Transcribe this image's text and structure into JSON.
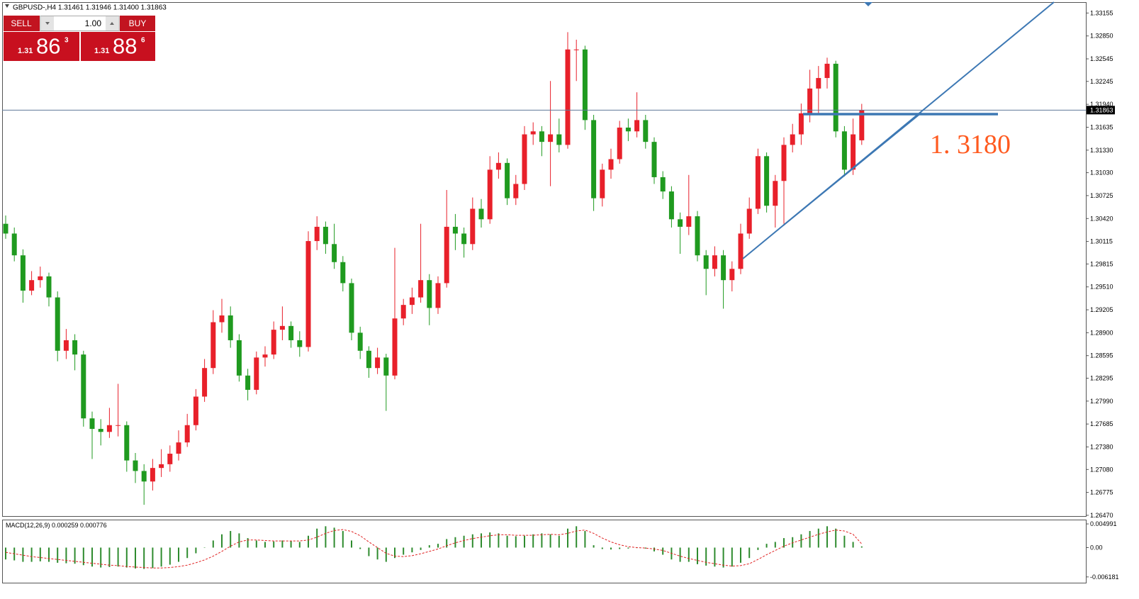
{
  "chart_data": [
    {
      "type": "candlestick",
      "title": "GBPUSD-,H4  1.31461 1.31946 1.31400 1.31863",
      "annotation": "1. 3180",
      "up_color": "#e8202a",
      "down_color": "#1f9a1f",
      "price_line_color": "#5f7a99",
      "trend_color": "#3d78b4",
      "ylim": [
        1.2646,
        1.333
      ],
      "yticks": [
        1.33155,
        {
          "value": 1.3285,
          "label": "1.32850"
        },
        1.32545,
        1.32245,
        {
          "value": 1.3194,
          "label": "1.31940"
        },
        1.31635,
        {
          "value": 1.3133,
          "label": "1.31330"
        },
        {
          "value": 1.3103,
          "label": "1.31030"
        },
        1.30725,
        {
          "value": 1.3042,
          "label": "1.30420"
        },
        1.30115,
        1.29815,
        {
          "value": 1.2951,
          "label": "1.29510"
        },
        1.29205,
        {
          "value": 1.289,
          "label": "1.28900"
        },
        1.28595,
        1.28295,
        {
          "value": 1.2799,
          "label": "1.27990"
        },
        1.27685,
        {
          "value": 1.2738,
          "label": "1.27380"
        },
        {
          "value": 1.2708,
          "label": "1.27080"
        },
        1.26775,
        {
          "value": 1.2647,
          "label": "1.26470"
        }
      ],
      "candles": [
        [
          1.3035,
          1.3046,
          1.3015,
          1.3022
        ],
        [
          1.3022,
          1.303,
          1.2985,
          1.2993
        ],
        [
          1.2993,
          1.3001,
          1.293,
          1.2946
        ],
        [
          1.2946,
          1.2972,
          1.294,
          1.296
        ],
        [
          1.296,
          1.2978,
          1.295,
          1.2965
        ],
        [
          1.2965,
          1.297,
          1.2925,
          1.2937
        ],
        [
          1.2937,
          1.2945,
          1.2852,
          1.2866
        ],
        [
          1.2866,
          1.2895,
          1.2855,
          1.288
        ],
        [
          1.288,
          1.2888,
          1.284,
          1.2861
        ],
        [
          1.2861,
          1.2866,
          1.2765,
          1.2776
        ],
        [
          1.2776,
          1.2785,
          1.2722,
          1.2762
        ],
        [
          1.2762,
          1.2775,
          1.274,
          1.2758
        ],
        [
          1.2758,
          1.279,
          1.275,
          1.2767
        ],
        [
          1.2767,
          1.2822,
          1.2752,
          1.2767
        ],
        [
          1.2767,
          1.2772,
          1.2705,
          1.272
        ],
        [
          1.272,
          1.273,
          1.269,
          1.2706
        ],
        [
          1.2706,
          1.2715,
          1.2661,
          1.2692
        ],
        [
          1.2692,
          1.2722,
          1.268,
          1.271
        ],
        [
          1.271,
          1.2735,
          1.2698,
          1.2715
        ],
        [
          1.2715,
          1.274,
          1.2705,
          1.2729
        ],
        [
          1.2729,
          1.276,
          1.272,
          1.2744
        ],
        [
          1.2744,
          1.2782,
          1.2738,
          1.2767
        ],
        [
          1.2767,
          1.2815,
          1.276,
          1.2805
        ],
        [
          1.2805,
          1.2855,
          1.2798,
          1.2843
        ],
        [
          1.2843,
          1.292,
          1.2835,
          1.2904
        ],
        [
          1.2904,
          1.2935,
          1.289,
          1.2913
        ],
        [
          1.2913,
          1.2925,
          1.287,
          1.288
        ],
        [
          1.288,
          1.2888,
          1.2825,
          1.2833
        ],
        [
          1.2833,
          1.2842,
          1.28,
          1.2814
        ],
        [
          1.2814,
          1.2865,
          1.2808,
          1.2857
        ],
        [
          1.2857,
          1.2872,
          1.2845,
          1.2861
        ],
        [
          1.2861,
          1.2905,
          1.2855,
          1.2894
        ],
        [
          1.2894,
          1.2925,
          1.288,
          1.2899
        ],
        [
          1.2899,
          1.2905,
          1.287,
          1.288
        ],
        [
          1.288,
          1.2892,
          1.2858,
          1.2871
        ],
        [
          1.2871,
          1.3025,
          1.2865,
          1.3012
        ],
        [
          1.3012,
          1.3045,
          1.3,
          1.3031
        ],
        [
          1.3031,
          1.3038,
          1.2995,
          1.3008
        ],
        [
          1.3008,
          1.3035,
          1.2975,
          1.2984
        ],
        [
          1.2984,
          1.2992,
          1.2945,
          1.2956
        ],
        [
          1.2956,
          1.2962,
          1.288,
          1.289
        ],
        [
          1.289,
          1.2898,
          1.2855,
          1.2866
        ],
        [
          1.2866,
          1.2872,
          1.283,
          1.2843
        ],
        [
          1.2843,
          1.287,
          1.2835,
          1.2857
        ],
        [
          1.2857,
          1.2862,
          1.2786,
          1.2833
        ],
        [
          1.2833,
          1.3003,
          1.2828,
          1.2909
        ],
        [
          1.2909,
          1.2935,
          1.29,
          1.2927
        ],
        [
          1.2927,
          1.295,
          1.2915,
          1.2937
        ],
        [
          1.2937,
          1.3035,
          1.293,
          1.296
        ],
        [
          1.296,
          1.2968,
          1.29,
          1.2923
        ],
        [
          1.2923,
          1.2965,
          1.2915,
          1.2956
        ],
        [
          1.2956,
          1.308,
          1.295,
          1.3031
        ],
        [
          1.3031,
          1.3048,
          1.3,
          1.3022
        ],
        [
          1.3022,
          1.303,
          1.299,
          1.3008
        ],
        [
          1.3008,
          1.307,
          1.3,
          1.3055
        ],
        [
          1.3055,
          1.3068,
          1.303,
          1.3041
        ],
        [
          1.3041,
          1.3125,
          1.3035,
          1.3107
        ],
        [
          1.3107,
          1.313,
          1.3095,
          1.3116
        ],
        [
          1.3116,
          1.3122,
          1.306,
          1.3069
        ],
        [
          1.3069,
          1.31,
          1.306,
          1.3088
        ],
        [
          1.3088,
          1.3165,
          1.308,
          1.3154
        ],
        [
          1.3154,
          1.317,
          1.314,
          1.3158
        ],
        [
          1.3158,
          1.3165,
          1.3125,
          1.3144
        ],
        [
          1.3144,
          1.3225,
          1.3085,
          1.3154
        ],
        [
          1.3154,
          1.3175,
          1.313,
          1.314
        ],
        [
          1.314,
          1.329,
          1.3135,
          1.3267
        ],
        [
          1.3267,
          1.328,
          1.3225,
          1.3267
        ],
        [
          1.3267,
          1.3272,
          1.316,
          1.3173
        ],
        [
          1.3173,
          1.318,
          1.3052,
          1.3069
        ],
        [
          1.3069,
          1.3115,
          1.3058,
          1.3107
        ],
        [
          1.3107,
          1.3135,
          1.3095,
          1.3121
        ],
        [
          1.3121,
          1.3172,
          1.3115,
          1.3163
        ],
        [
          1.3163,
          1.3175,
          1.3145,
          1.3158
        ],
        [
          1.3158,
          1.321,
          1.315,
          1.3173
        ],
        [
          1.3173,
          1.318,
          1.3135,
          1.3144
        ],
        [
          1.3144,
          1.315,
          1.3088,
          1.3097
        ],
        [
          1.3097,
          1.3105,
          1.3068,
          1.3078
        ],
        [
          1.3078,
          1.3085,
          1.303,
          1.3041
        ],
        [
          1.3041,
          1.305,
          1.2995,
          1.3031
        ],
        [
          1.3031,
          1.31,
          1.302,
          1.3045
        ],
        [
          1.3045,
          1.3052,
          1.2985,
          1.2993
        ],
        [
          1.2993,
          1.3,
          1.294,
          1.2975
        ],
        [
          1.2975,
          1.3005,
          1.2965,
          1.2993
        ],
        [
          1.2993,
          1.3,
          1.2922,
          1.296
        ],
        [
          1.296,
          1.2985,
          1.2945,
          1.2975
        ],
        [
          1.2975,
          1.3035,
          1.2968,
          1.3022
        ],
        [
          1.3022,
          1.307,
          1.3015,
          1.3055
        ],
        [
          1.3055,
          1.3135,
          1.3048,
          1.3125
        ],
        [
          1.3125,
          1.313,
          1.305,
          1.3059
        ],
        [
          1.3059,
          1.31,
          1.303,
          1.3092
        ],
        [
          1.3092,
          1.315,
          1.3035,
          1.314
        ],
        [
          1.314,
          1.3168,
          1.313,
          1.3154
        ],
        [
          1.3154,
          1.3195,
          1.314,
          1.3182
        ],
        [
          1.3182,
          1.324,
          1.317,
          1.3215
        ],
        [
          1.3215,
          1.3245,
          1.318,
          1.3229
        ],
        [
          1.3229,
          1.3256,
          1.3215,
          1.3248
        ],
        [
          1.3248,
          1.3252,
          1.315,
          1.3158
        ],
        [
          1.3158,
          1.3165,
          1.3098,
          1.3107
        ],
        [
          1.3107,
          1.3175,
          1.31,
          1.3154
        ],
        [
          1.31461,
          1.31946,
          1.314,
          1.31863
        ]
      ]
    },
    {
      "type": "macd",
      "title": "MACD(12,26,9) 0.000259 0.000776",
      "color": "#2e8b2e",
      "signal_color": "#e02020",
      "ylim": [
        -0.0074,
        0.0059
      ],
      "yticks": [
        0.004991,
        {
          "value": 0,
          "label": "0.00"
        },
        -0.006181
      ],
      "values": [
        -0.0025,
        -0.0027,
        -0.003,
        -0.003,
        -0.0029,
        -0.003,
        -0.0032,
        -0.0033,
        -0.0034,
        -0.0037,
        -0.004,
        -0.0042,
        -0.0041,
        -0.004,
        -0.0042,
        -0.0044,
        -0.0045,
        -0.0043,
        -0.004,
        -0.0036,
        -0.003,
        -0.0022,
        -0.0012,
        0,
        0.0015,
        0.0028,
        0.0035,
        0.003,
        0.002,
        0.0015,
        0.0012,
        0.0013,
        0.0015,
        0.0014,
        0.0012,
        0.0025,
        0.004,
        0.0045,
        0.0042,
        0.0035,
        0.0015,
        -0.0003,
        -0.0018,
        -0.0025,
        -0.003,
        -0.0022,
        -0.0015,
        -0.001,
        -0.0005,
        0.0005,
        0.0008,
        0.0018,
        0.0022,
        0.0025,
        0.0028,
        0.003,
        0.0032,
        0.003,
        0.0025,
        0.0024,
        0.0025,
        0.0028,
        0.003,
        0.0028,
        0.0025,
        0.004,
        0.0045,
        0.0035,
        0.0005,
        -0.0003,
        -0.0004,
        -0.0003,
        -0.0002,
        -0.0001,
        -0.0002,
        -0.0008,
        -0.0015,
        -0.0025,
        -0.003,
        -0.003,
        -0.0035,
        -0.0038,
        -0.004,
        -0.0042,
        -0.004,
        -0.0032,
        -0.0022,
        -0.0005,
        0.0008,
        0.0012,
        0.002,
        0.0022,
        0.0028,
        0.0035,
        0.004,
        0.0045,
        0.004,
        0.0025,
        0.0012,
        0.000259
      ],
      "signal": [
        -0.001,
        -0.0013,
        -0.0016,
        -0.0019,
        -0.0021,
        -0.0023,
        -0.0025,
        -0.0027,
        -0.0029,
        -0.0031,
        -0.0033,
        -0.0035,
        -0.0037,
        -0.0038,
        -0.004,
        -0.0041,
        -0.0042,
        -0.0043,
        -0.0043,
        -0.0042,
        -0.004,
        -0.0037,
        -0.0032,
        -0.0026,
        -0.0018,
        -0.0008,
        0.0003,
        0.0012,
        0.0016,
        0.0016,
        0.0015,
        0.0014,
        0.0014,
        0.0014,
        0.0014,
        0.0016,
        0.0022,
        0.003,
        0.0036,
        0.0038,
        0.0034,
        0.0025,
        0.0012,
        0,
        -0.0012,
        -0.0018,
        -0.0019,
        -0.0017,
        -0.0013,
        -0.0008,
        -0.0003,
        0.0004,
        0.001,
        0.0015,
        0.0019,
        0.0022,
        0.0025,
        0.0027,
        0.0027,
        0.0026,
        0.0026,
        0.0026,
        0.0027,
        0.0028,
        0.0027,
        0.003,
        0.0035,
        0.0037,
        0.003,
        0.002,
        0.0012,
        0.0006,
        0.0002,
        0,
        -0.0001,
        -0.0003,
        -0.0006,
        -0.0012,
        -0.0018,
        -0.0023,
        -0.0027,
        -0.0031,
        -0.0034,
        -0.0037,
        -0.0039,
        -0.0038,
        -0.0034,
        -0.0025,
        -0.0015,
        -0.0006,
        0.0003,
        0.001,
        0.0016,
        0.0022,
        0.0028,
        0.0033,
        0.0037,
        0.0035,
        0.0028,
        0.000776
      ]
    }
  ],
  "trade_panel": {
    "sell_label": "SELL",
    "volume": "1.00",
    "buy_label": "BUY",
    "sell_price": {
      "prefix": "1.31",
      "big": "86",
      "small": "3"
    },
    "buy_price": {
      "prefix": "1.31",
      "big": "88",
      "small": "6"
    }
  }
}
